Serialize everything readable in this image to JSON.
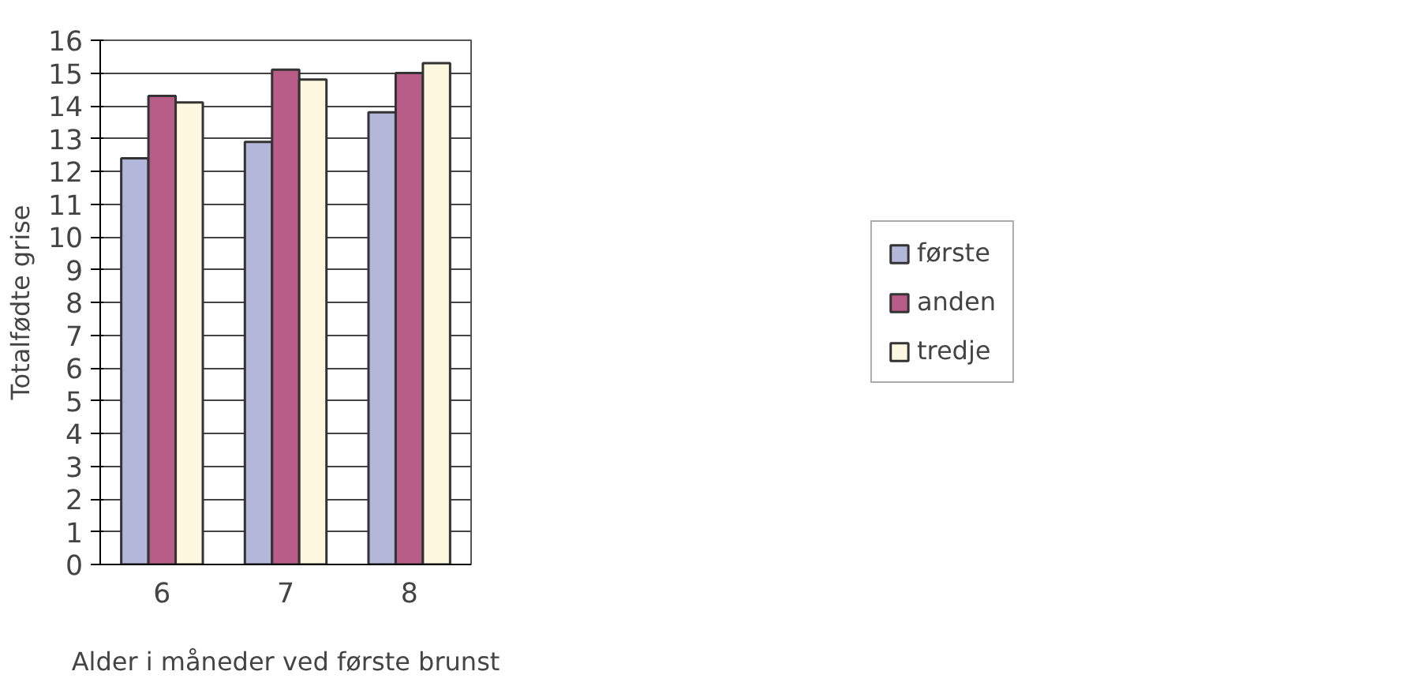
{
  "chart_data": {
    "type": "bar",
    "xlabel": "Alder i måneder ved første brunst",
    "ylabel": "Totalfødte grise",
    "categories": [
      "6",
      "7",
      "8"
    ],
    "series": [
      {
        "name": "første",
        "color": "#b3b7d9",
        "values": [
          12.4,
          12.9,
          13.8
        ]
      },
      {
        "name": "anden",
        "color": "#b85c88",
        "values": [
          14.3,
          15.1,
          15.0
        ]
      },
      {
        "name": "tredje",
        "color": "#fdf8df",
        "values": [
          14.1,
          14.8,
          15.3
        ]
      }
    ],
    "ylim": [
      0,
      16
    ],
    "yticks": [
      0,
      1,
      2,
      3,
      4,
      5,
      6,
      7,
      8,
      9,
      10,
      11,
      12,
      13,
      14,
      15,
      16
    ],
    "grid": "y",
    "legend": "right"
  }
}
